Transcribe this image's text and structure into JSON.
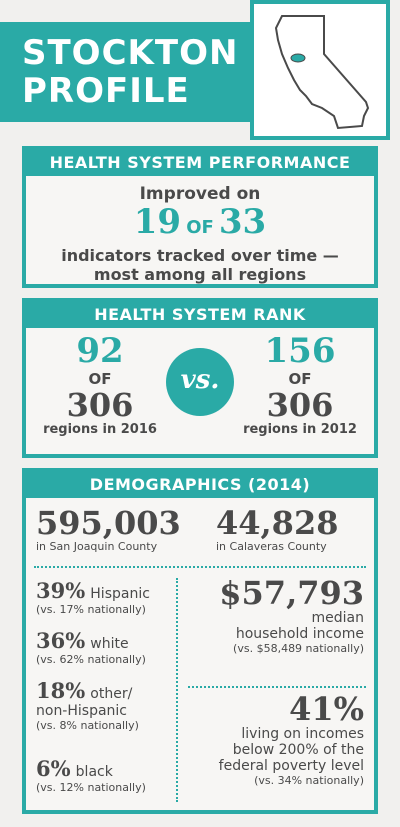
{
  "title_line1": "STOCKTON",
  "title_line2": "PROFILE",
  "performance": {
    "heading": "HEALTH SYSTEM PERFORMANCE",
    "line1": "Improved on",
    "value": "19",
    "of": "OF",
    "total": "33",
    "line3": "indicators tracked over time —",
    "line4": "most among all regions"
  },
  "rank": {
    "heading": "HEALTH SYSTEM RANK",
    "left_value": "92",
    "left_of": "OF",
    "left_total": "306",
    "left_caption": "regions in 2016",
    "vs": "vs.",
    "right_value": "156",
    "right_of": "OF",
    "right_total": "306",
    "right_caption": "regions in 2012"
  },
  "demographics": {
    "heading": "DEMOGRAPHICS (2014)",
    "pop1_value": "595,003",
    "pop1_label": "in San Joaquin County",
    "pop2_value": "44,828",
    "pop2_label": "in Calaveras County",
    "groups": [
      {
        "pct": "39%",
        "label": "Hispanic",
        "note": "(vs. 17% nationally)"
      },
      {
        "pct": "36%",
        "label": "white",
        "note": "(vs. 62% nationally)"
      },
      {
        "pct": "18%",
        "label": "other/",
        "label2": "non-Hispanic",
        "note": "(vs. 8% nationally)"
      },
      {
        "pct": "6%",
        "label": "black",
        "note": "(vs. 12% nationally)"
      }
    ],
    "income_value": "$57,793",
    "income_label1": "median",
    "income_label2": "household income",
    "income_note": "(vs. $58,489 nationally)",
    "poverty_value": "41%",
    "poverty_line1": "living on incomes",
    "poverty_line2": "below 200% of the",
    "poverty_line3": "federal poverty level",
    "poverty_note": "(vs. 34% nationally)"
  },
  "colors": {
    "accent": "#2aaaa6",
    "text": "#4a4a4a",
    "background": "#f1f0ee"
  },
  "icons": {
    "map": "california-map-icon"
  }
}
